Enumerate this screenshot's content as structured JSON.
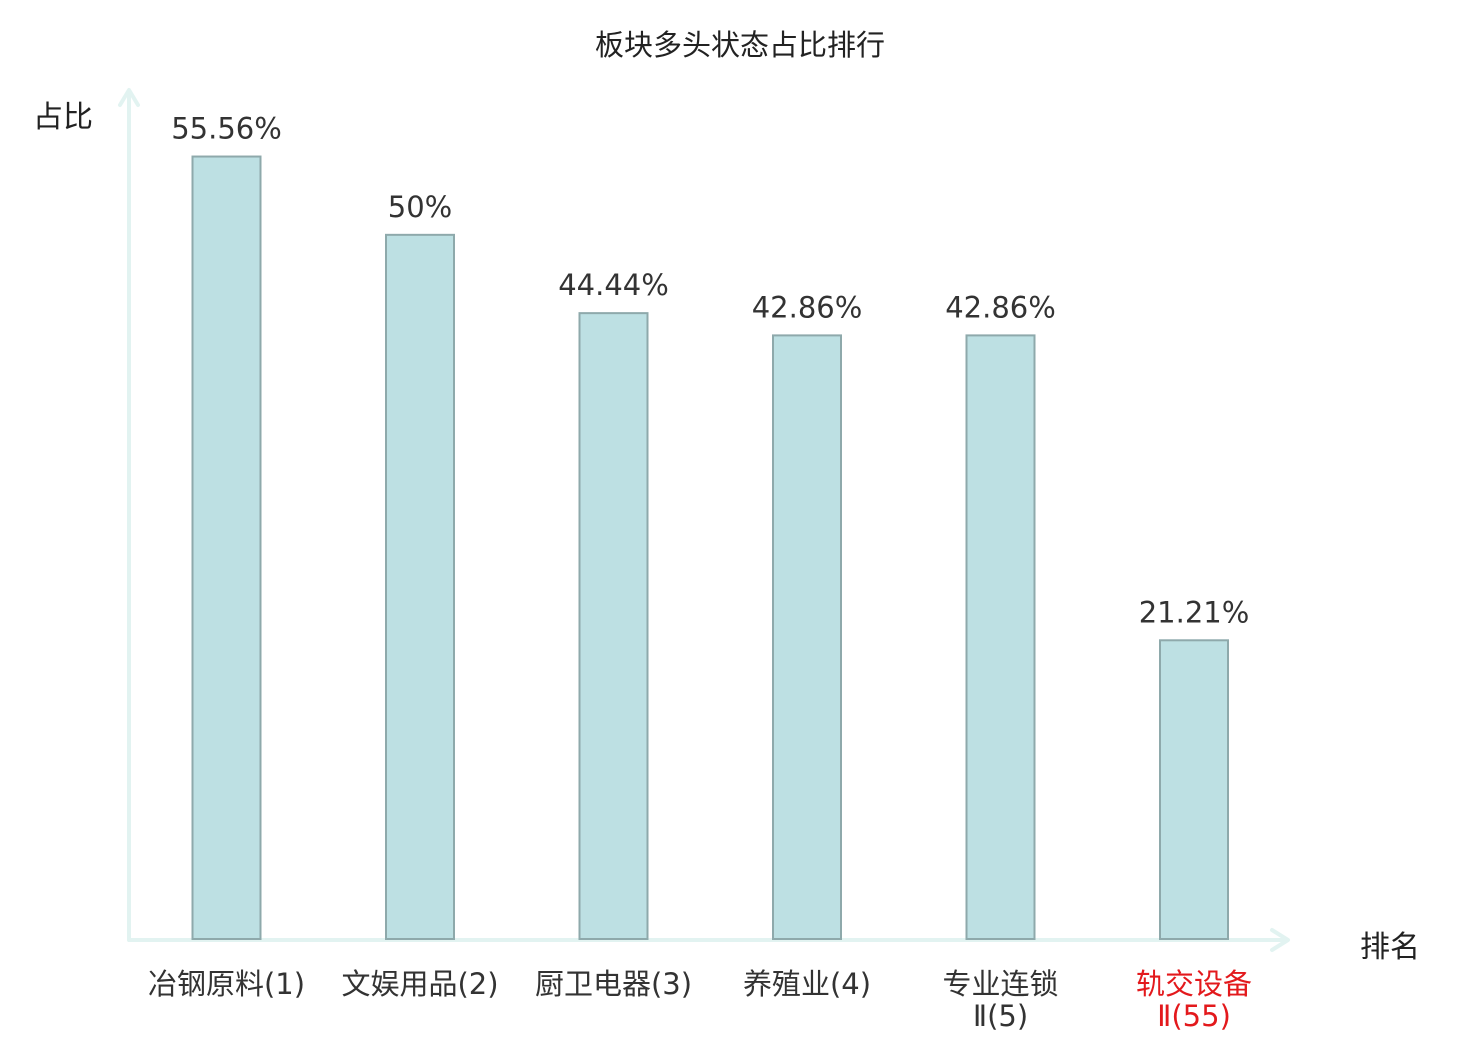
{
  "chart_data": {
    "type": "bar",
    "title": "板块多头状态占比排行",
    "ylabel": "占比",
    "xlabel": "排名",
    "categories": [
      {
        "name": "冶钢原料",
        "rank": "(1)",
        "highlight": false
      },
      {
        "name": "文娱用品",
        "rank": "(2)",
        "highlight": false
      },
      {
        "name": "厨卫电器",
        "rank": "(3)",
        "highlight": false
      },
      {
        "name": "养殖业",
        "rank": "(4)",
        "highlight": false
      },
      {
        "name": "专业连锁",
        "name_line2": "Ⅱ",
        "rank": "(5)",
        "highlight": false
      },
      {
        "name": "轨交设备",
        "name_line2": "Ⅱ",
        "rank": "(55)",
        "highlight": true
      }
    ],
    "values": [
      55.56,
      50,
      44.44,
      42.86,
      42.86,
      21.21
    ],
    "value_labels": [
      "55.56%",
      "50%",
      "44.44%",
      "42.86%",
      "42.86%",
      "21.21%"
    ],
    "ylim": [
      0,
      60
    ],
    "grid": false,
    "colors": {
      "bar_fill": "#bde0e3",
      "bar_stroke": "#8ea9ab",
      "axis": "#e2f3f1",
      "text": "#333333",
      "highlight": "#e3191c"
    }
  }
}
